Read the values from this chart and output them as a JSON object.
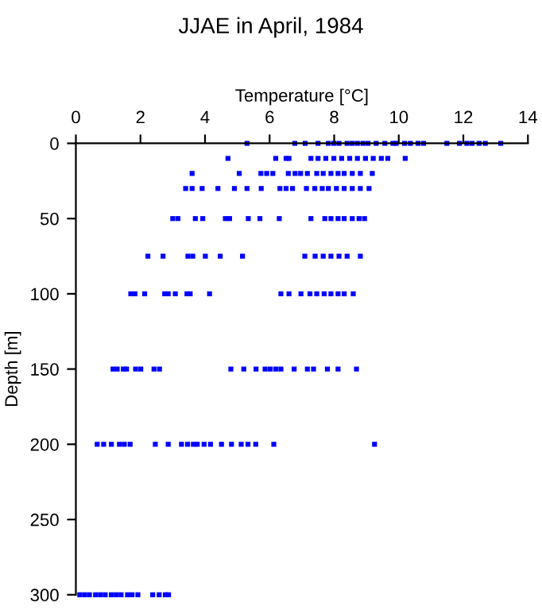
{
  "chart_data": {
    "type": "scatter",
    "title": "JJAE in April, 1984",
    "xlabel": "Temperature [°C]",
    "ylabel": "Depth [m]",
    "xlim": [
      0,
      14
    ],
    "xticks": [
      0,
      2,
      4,
      6,
      8,
      10,
      12,
      14
    ],
    "ylim": [
      300,
      0
    ],
    "yticks": [
      0,
      50,
      100,
      150,
      200,
      250,
      300
    ],
    "grid": false,
    "marker": "square",
    "series": [
      {
        "color": "#0000ff",
        "x": [
          5.3,
          6.78,
          7.1,
          7.5,
          7.82,
          7.99,
          8.15,
          8.4,
          8.56,
          8.72,
          8.89,
          9.05,
          9.3,
          9.57,
          9.82,
          9.92,
          10.18,
          10.36,
          10.6,
          10.77,
          11.49,
          11.88,
          12.11,
          12.27,
          12.49,
          12.68,
          13.16,
          4.71,
          6.19,
          6.51,
          6.6,
          7.28,
          7.5,
          7.74,
          7.99,
          8.23,
          8.48,
          8.72,
          8.97,
          9.21,
          9.46,
          9.66,
          10.2,
          3.6,
          5.06,
          5.73,
          5.91,
          6.1,
          6.58,
          6.79,
          6.96,
          7.17,
          7.46,
          7.66,
          7.9,
          8.12,
          8.31,
          8.56,
          8.81,
          9.18,
          3.4,
          3.6,
          3.91,
          4.4,
          4.91,
          5.3,
          5.74,
          6.32,
          6.51,
          6.71,
          7.14,
          7.4,
          7.63,
          7.82,
          8.07,
          8.31,
          8.56,
          8.81,
          9.08,
          3.0,
          3.16,
          3.7,
          3.93,
          4.63,
          4.76,
          5.34,
          5.7,
          6.3,
          7.28,
          7.71,
          7.9,
          8.12,
          8.31,
          8.56,
          8.77,
          8.94,
          2.23,
          2.7,
          3.47,
          3.62,
          4.01,
          4.47,
          5.16,
          7.09,
          7.41,
          7.66,
          7.9,
          8.15,
          8.4,
          8.81,
          1.7,
          1.83,
          2.13,
          2.75,
          2.86,
          3.08,
          3.44,
          3.54,
          4.14,
          6.35,
          6.6,
          6.97,
          7.25,
          7.46,
          7.69,
          7.9,
          8.12,
          8.31,
          8.59,
          1.15,
          1.28,
          1.47,
          1.57,
          1.85,
          2.01,
          2.42,
          2.59,
          4.8,
          5.2,
          5.58,
          5.86,
          6.02,
          6.19,
          6.35,
          6.76,
          7.17,
          7.36,
          7.79,
          8.12,
          8.69,
          0.66,
          0.86,
          1.1,
          1.35,
          1.5,
          1.68,
          2.46,
          2.86,
          3.27,
          3.46,
          3.64,
          3.76,
          3.97,
          4.17,
          4.51,
          4.82,
          5.12,
          5.33,
          5.57,
          6.13,
          9.25,
          0.12,
          0.27,
          0.42,
          0.61,
          0.76,
          0.91,
          1.1,
          1.25,
          1.4,
          1.6,
          1.74,
          1.92,
          2.38,
          2.58,
          2.77,
          2.87
        ],
        "values": [
          0,
          0,
          0,
          0,
          0,
          0,
          0,
          0,
          0,
          0,
          0,
          0,
          0,
          0,
          0,
          0,
          0,
          0,
          0,
          0,
          0,
          0,
          0,
          0,
          0,
          0,
          0,
          10,
          10,
          10,
          10,
          10,
          10,
          10,
          10,
          10,
          10,
          10,
          10,
          10,
          10,
          10,
          10,
          20,
          20,
          20,
          20,
          20,
          20,
          20,
          20,
          20,
          20,
          20,
          20,
          20,
          20,
          20,
          20,
          20,
          30,
          30,
          30,
          30,
          30,
          30,
          30,
          30,
          30,
          30,
          30,
          30,
          30,
          30,
          30,
          30,
          30,
          30,
          30,
          50,
          50,
          50,
          50,
          50,
          50,
          50,
          50,
          50,
          50,
          50,
          50,
          50,
          50,
          50,
          50,
          50,
          75,
          75,
          75,
          75,
          75,
          75,
          75,
          75,
          75,
          75,
          75,
          75,
          75,
          75,
          100,
          100,
          100,
          100,
          100,
          100,
          100,
          100,
          100,
          100,
          100,
          100,
          100,
          100,
          100,
          100,
          100,
          100,
          100,
          150,
          150,
          150,
          150,
          150,
          150,
          150,
          150,
          150,
          150,
          150,
          150,
          150,
          150,
          150,
          150,
          150,
          150,
          150,
          150,
          150,
          200,
          200,
          200,
          200,
          200,
          200,
          200,
          200,
          200,
          200,
          200,
          200,
          200,
          200,
          200,
          200,
          200,
          200,
          200,
          200,
          200,
          300,
          300,
          300,
          300,
          300,
          300,
          300,
          300,
          300,
          300,
          300,
          300,
          300,
          300,
          300,
          300
        ]
      }
    ]
  }
}
